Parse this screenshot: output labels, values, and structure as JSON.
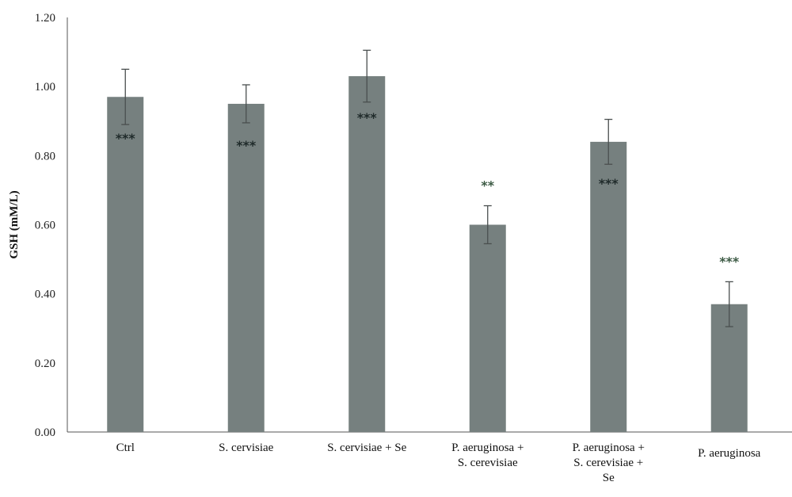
{
  "chart_data": {
    "type": "bar",
    "title": "",
    "xlabel": "",
    "ylabel": "GSH (mM/L)",
    "ylim": [
      0,
      1.2
    ],
    "yticks": [
      "0.00",
      "0.20",
      "0.40",
      "0.60",
      "0.80",
      "1.00",
      "1.20"
    ],
    "grid": false,
    "bar_color": "#76807f",
    "categories": [
      [
        "Ctrl"
      ],
      [
        "S. cervisiae"
      ],
      [
        "S. cervisiae + Se"
      ],
      [
        "P. aeruginosa +",
        "S. cerevisiae"
      ],
      [
        "P. aeruginosa +",
        "S. cerevisiae +",
        "Se"
      ],
      [
        "P. aeruginosa"
      ]
    ],
    "values": [
      0.97,
      0.95,
      1.03,
      0.6,
      0.84,
      0.37
    ],
    "errors": [
      0.08,
      0.055,
      0.075,
      0.055,
      0.065,
      0.065
    ],
    "significance": [
      {
        "text": "***",
        "color": "#1f2a2a",
        "pos": "inside"
      },
      {
        "text": "***",
        "color": "#1f2a2a",
        "pos": "inside"
      },
      {
        "text": "***",
        "color": "#1f2a2a",
        "pos": "inside"
      },
      {
        "text": "**",
        "color": "#3c5a44",
        "pos": "above"
      },
      {
        "text": "***",
        "color": "#1f2a2a",
        "pos": "inside"
      },
      {
        "text": "***",
        "color": "#3c5a44",
        "pos": "above"
      }
    ]
  }
}
